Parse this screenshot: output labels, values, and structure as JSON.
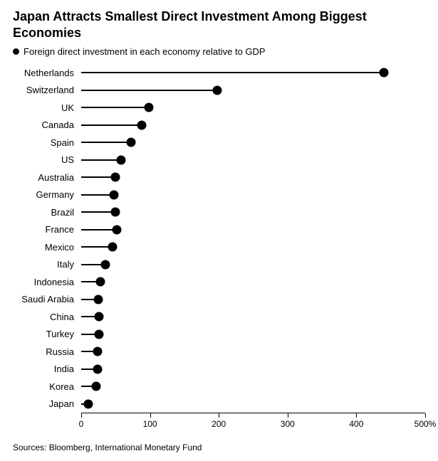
{
  "title": "Japan Attracts Smallest Direct Investment Among Biggest Economies",
  "legend_text": "Foreign direct investment in each economy relative to GDP",
  "source": "Sources: Bloomberg, International Monetary Fund",
  "chart": {
    "type": "lollipop",
    "xlim": [
      0,
      500
    ],
    "xticks": [
      0,
      100,
      200,
      300,
      400,
      500
    ],
    "xtick_labels": [
      "0",
      "100",
      "200",
      "300",
      "400",
      "500%"
    ],
    "bar_color": "#000000",
    "dot_color": "#000000",
    "background_color": "#ffffff",
    "text_color": "#000000",
    "title_fontsize": 18,
    "label_fontsize": 13,
    "tick_fontsize": 12,
    "dot_radius": 6.5,
    "stem_width": 2,
    "row_height": 24.5,
    "data": [
      {
        "label": "Netherlands",
        "value": 440
      },
      {
        "label": "Switzerland",
        "value": 198
      },
      {
        "label": "UK",
        "value": 98
      },
      {
        "label": "Canada",
        "value": 88
      },
      {
        "label": "Spain",
        "value": 72
      },
      {
        "label": "US",
        "value": 58
      },
      {
        "label": "Australia",
        "value": 50
      },
      {
        "label": "Germany",
        "value": 48
      },
      {
        "label": "Brazil",
        "value": 50
      },
      {
        "label": "France",
        "value": 52
      },
      {
        "label": "Mexico",
        "value": 46
      },
      {
        "label": "Italy",
        "value": 35
      },
      {
        "label": "Indonesia",
        "value": 28
      },
      {
        "label": "Saudi Arabia",
        "value": 25
      },
      {
        "label": "China",
        "value": 26
      },
      {
        "label": "Turkey",
        "value": 26
      },
      {
        "label": "Russia",
        "value": 24
      },
      {
        "label": "India",
        "value": 24
      },
      {
        "label": "Korea",
        "value": 22
      },
      {
        "label": "Japan",
        "value": 10
      }
    ]
  }
}
